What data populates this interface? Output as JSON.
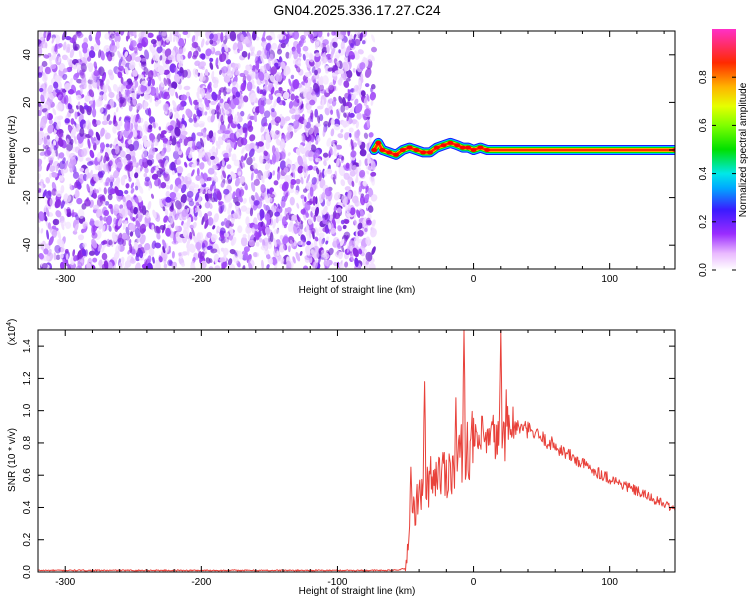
{
  "figure": {
    "title": "GN04.2025.336.17.27.C24"
  },
  "chart_data": [
    {
      "type": "heatmap",
      "description_role": "spectrogram",
      "xlabel": "Height of straight line (km)",
      "ylabel": "Frequency (Hz)",
      "xlim": [
        -320,
        148
      ],
      "ylim": [
        -50,
        50
      ],
      "xticks": [
        -300,
        -200,
        -100,
        0,
        100
      ],
      "xtick_labels": [
        "-300",
        "-200",
        "-100",
        "0",
        "100"
      ],
      "yticks": [
        -40,
        -20,
        0,
        20,
        40
      ],
      "ytick_labels": [
        "-40",
        "-20",
        "0",
        "20",
        "40"
      ],
      "noise_region_x": [
        -320,
        -73
      ],
      "signal_track": [
        {
          "x": -73,
          "y": 0
        },
        {
          "x": -70,
          "y": 3
        },
        {
          "x": -67,
          "y": 0
        },
        {
          "x": -62,
          "y": -1
        },
        {
          "x": -57,
          "y": -2
        },
        {
          "x": -52,
          "y": 0
        },
        {
          "x": -47,
          "y": 1
        },
        {
          "x": -42,
          "y": 0
        },
        {
          "x": -37,
          "y": -1
        },
        {
          "x": -32,
          "y": -1
        },
        {
          "x": -27,
          "y": 1
        },
        {
          "x": -22,
          "y": 2
        },
        {
          "x": -17,
          "y": 3
        },
        {
          "x": -12,
          "y": 2
        },
        {
          "x": -8,
          "y": 1
        },
        {
          "x": -4,
          "y": 1
        },
        {
          "x": 0,
          "y": 0
        },
        {
          "x": 5,
          "y": 1
        },
        {
          "x": 10,
          "y": 0
        },
        {
          "x": 148,
          "y": 0
        }
      ],
      "colorbar": {
        "label": "Normalized spectral amplitude",
        "range": [
          0,
          1
        ],
        "ticks": [
          0.0,
          0.2,
          0.4,
          0.6,
          0.8
        ],
        "tick_labels": [
          "0.0",
          "0.2",
          "0.4",
          "0.6",
          "0.8"
        ]
      },
      "grid": false
    },
    {
      "type": "line",
      "xlabel": "Height of straight line (km)",
      "ylabel": "SNR (10 * v/v)",
      "y_multiplier_label": "(x10",
      "y_multiplier_exponent": "4",
      "y_multiplier_close": ")",
      "xlim": [
        -320,
        148
      ],
      "ylim": [
        0,
        1.5
      ],
      "xticks": [
        -300,
        -200,
        -100,
        0,
        100
      ],
      "xtick_labels": [
        "-300",
        "-200",
        "-100",
        "0",
        "100"
      ],
      "yticks": [
        0.0,
        0.2,
        0.4,
        0.6,
        0.8,
        1.0,
        1.2,
        1.4
      ],
      "ytick_labels": [
        "0.0",
        "0.2",
        "0.4",
        "0.6",
        "0.8",
        "1.0",
        "1.2",
        "1.4"
      ],
      "series": [
        {
          "color": "#e8413a",
          "envelope": [
            {
              "x": -320,
              "y": 0.01
            },
            {
              "x": -60,
              "y": 0.01
            },
            {
              "x": -50,
              "y": 0.02
            },
            {
              "x": -46,
              "y": 0.35
            },
            {
              "x": -40,
              "y": 0.45
            },
            {
              "x": -30,
              "y": 0.6
            },
            {
              "x": -20,
              "y": 0.62
            },
            {
              "x": -10,
              "y": 0.72
            },
            {
              "x": 0,
              "y": 0.8
            },
            {
              "x": 10,
              "y": 0.8
            },
            {
              "x": 20,
              "y": 0.85
            },
            {
              "x": 30,
              "y": 0.9
            },
            {
              "x": 40,
              "y": 0.88
            },
            {
              "x": 60,
              "y": 0.78
            },
            {
              "x": 80,
              "y": 0.67
            },
            {
              "x": 100,
              "y": 0.58
            },
            {
              "x": 120,
              "y": 0.5
            },
            {
              "x": 140,
              "y": 0.42
            },
            {
              "x": 148,
              "y": 0.39
            }
          ],
          "peaks": [
            {
              "x": -46,
              "y": 0.65
            },
            {
              "x": -36,
              "y": 1.18
            },
            {
              "x": -13,
              "y": 1.08
            },
            {
              "x": -7,
              "y": 1.5
            },
            {
              "x": 20,
              "y": 1.5
            },
            {
              "x": 24,
              "y": 1.13
            }
          ]
        }
      ],
      "grid": false
    }
  ]
}
